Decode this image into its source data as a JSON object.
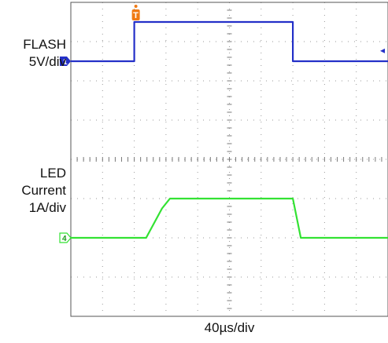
{
  "chart_data": {
    "type": "line",
    "grid": true,
    "divisions": {
      "x": 10,
      "y": 8
    },
    "x_scale_label": "40µs/div",
    "x_unit": "µs",
    "xlim": [
      0,
      400
    ],
    "channels": [
      {
        "name": "FLASH",
        "scale_label": "5V/div",
        "marker": "1",
        "color": "#2430c8",
        "ground_div": 6.5,
        "volts_per_div": 5,
        "x": [
          0,
          80,
          80,
          280,
          280,
          400
        ],
        "y": [
          0,
          0,
          5,
          5,
          0,
          0
        ]
      },
      {
        "name": "LED Current",
        "name_lines": [
          "LED",
          "Current"
        ],
        "scale_label": "1A/div",
        "marker": "4",
        "color": "#33e233",
        "ground_div": 2.0,
        "amps_per_div": 1,
        "x": [
          0,
          95,
          115,
          125,
          280,
          290,
          400
        ],
        "y": [
          0,
          0,
          0.75,
          1,
          1,
          0,
          0
        ]
      }
    ],
    "trigger_marker": "T",
    "trigger_color": "#f07a14",
    "right_marker": "◂"
  }
}
